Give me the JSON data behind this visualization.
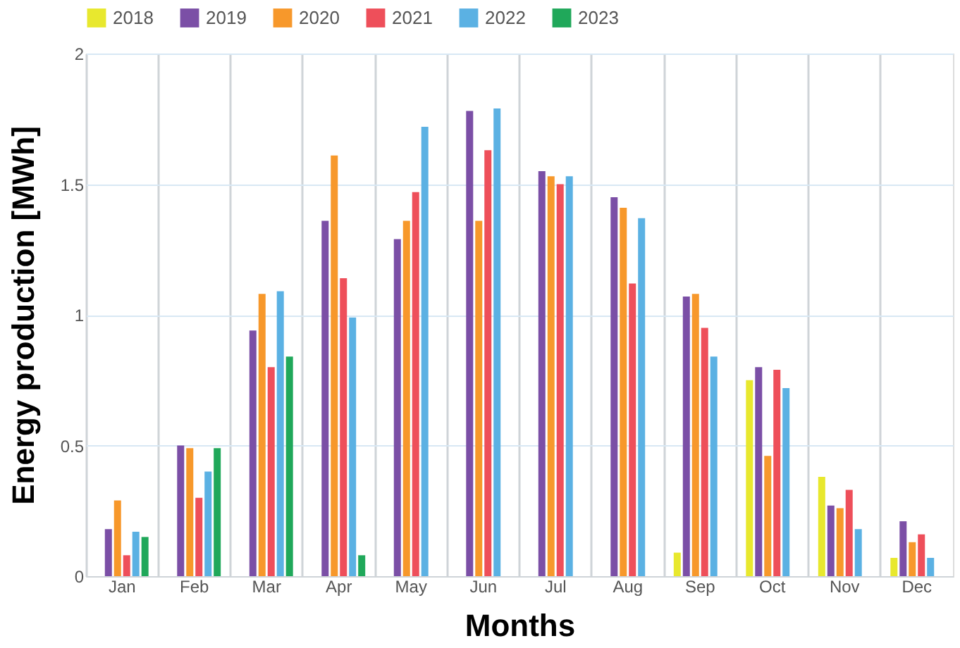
{
  "chart_data": {
    "type": "bar",
    "xlabel": "Months",
    "ylabel": "Energy production [MWh]",
    "categories": [
      "Jan",
      "Feb",
      "Mar",
      "Apr",
      "May",
      "Jun",
      "Jul",
      "Aug",
      "Sep",
      "Oct",
      "Nov",
      "Dec"
    ],
    "series": [
      {
        "name": "2018",
        "color": "#e8e82e",
        "values": [
          null,
          null,
          null,
          null,
          null,
          null,
          null,
          null,
          0.09,
          0.75,
          0.38,
          0.07
        ]
      },
      {
        "name": "2019",
        "color": "#7b4fa6",
        "values": [
          0.18,
          0.5,
          0.94,
          1.36,
          1.29,
          1.78,
          1.55,
          1.45,
          1.07,
          0.8,
          0.27,
          0.21
        ]
      },
      {
        "name": "2020",
        "color": "#f7982b",
        "values": [
          0.29,
          0.49,
          1.08,
          1.61,
          1.36,
          1.36,
          1.53,
          1.41,
          1.08,
          0.46,
          0.26,
          0.13
        ]
      },
      {
        "name": "2021",
        "color": "#ee4f5a",
        "values": [
          0.08,
          0.3,
          0.8,
          1.14,
          1.47,
          1.63,
          1.5,
          1.12,
          0.95,
          0.79,
          0.33,
          0.16
        ]
      },
      {
        "name": "2022",
        "color": "#5bb1e3",
        "values": [
          0.17,
          0.4,
          1.09,
          0.99,
          1.72,
          1.79,
          1.53,
          1.37,
          0.84,
          0.72,
          0.18,
          0.07
        ]
      },
      {
        "name": "2023",
        "color": "#20a85a",
        "values": [
          0.15,
          0.49,
          0.84,
          0.08,
          null,
          null,
          null,
          null,
          null,
          null,
          null,
          null
        ]
      }
    ],
    "ylim": [
      0,
      2
    ],
    "yticks": [
      0,
      0.5,
      1,
      1.5,
      2
    ],
    "grid": true,
    "legend": "top left"
  }
}
